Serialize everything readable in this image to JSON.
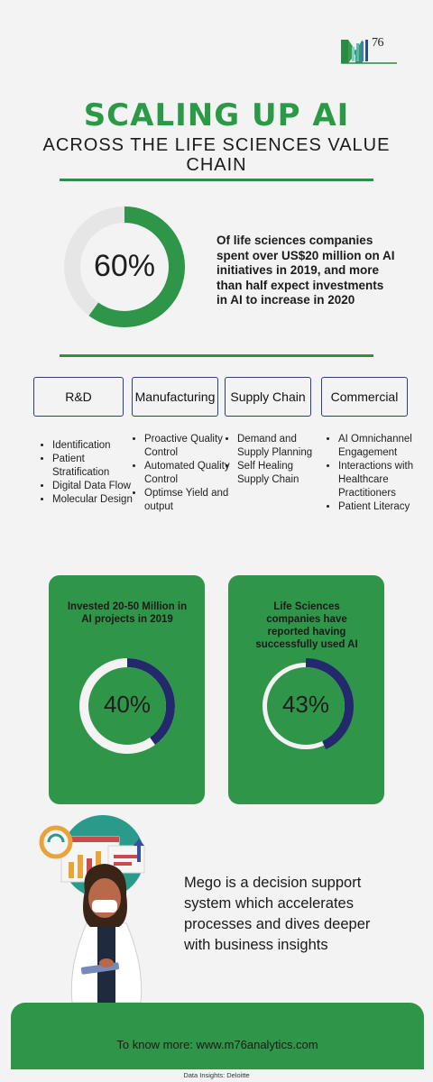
{
  "logo": {
    "text": "76"
  },
  "title": {
    "main": "SCALING UP AI",
    "sub": "ACROSS THE LIFE SCIENCES VALUE CHAIN"
  },
  "stat_main": {
    "value_label": "60%",
    "fraction": 0.6,
    "text": "Of life sciences companies spent over US$20 million on AI initiatives in 2019, and more than half expect investments in AI to increase in 2020"
  },
  "categories": [
    {
      "label": "R&D",
      "items": [
        "Identification",
        "Patient Stratification",
        "Digital Data Flow",
        "Molecular Design"
      ]
    },
    {
      "label": "Manufacturing",
      "items": [
        "Proactive Quality Control",
        "Automated Quality Control",
        "Optimse Yield and output"
      ]
    },
    {
      "label": "Supply Chain",
      "items": [
        "Demand and Supply Planning",
        "Self Healing Supply Chain"
      ]
    },
    {
      "label": "Commercial",
      "items": [
        "AI Omnichannel Engagement",
        "Interactions with Healthcare Practitioners",
        "Patient Literacy"
      ]
    }
  ],
  "cards": [
    {
      "title": "Invested 20-50 Million in AI projects in 2019",
      "value_label": "40%",
      "fraction": 0.4
    },
    {
      "title": "Life Sciences companies have reported having successfully  used AI",
      "value_label": "43%",
      "fraction": 0.43
    }
  ],
  "mego": {
    "text": "Mego is a decision support system which accelerates processes and dives deeper with business insights"
  },
  "footer": {
    "text": "To know more: www.m76analytics.com",
    "source": "Data Insights: Deloitte"
  },
  "colors": {
    "green": "#2f9549",
    "navy": "#232a6b",
    "ring_track": "#e6e6e6"
  }
}
